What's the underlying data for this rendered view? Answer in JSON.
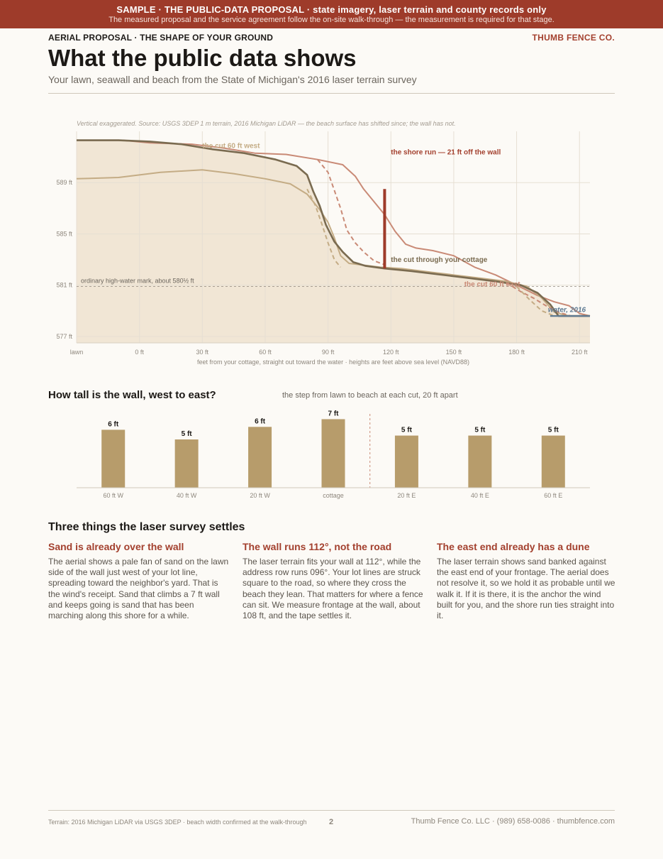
{
  "banner": {
    "line1": "SAMPLE  ·  THE PUBLIC-DATA PROPOSAL  ·  state imagery, laser terrain and county records only",
    "line2": "The measured proposal and the service agreement follow the on-site walk-through — the measurement is required for that stage."
  },
  "header": {
    "kicker": "AERIAL PROPOSAL · THE SHAPE OF YOUR GROUND",
    "brand": "THUMB FENCE CO.",
    "title": "What the public data shows",
    "subtitle": "Your lawn, seawall and beach from the State of Michigan's 2016 laser terrain survey"
  },
  "colors": {
    "accent": "#a3402e",
    "banner": "#9e3b2a",
    "tan": "#b79c6b",
    "olive": "#7a6b50",
    "terrain_fill": "#f1e6d5",
    "water": "#5f7b93"
  },
  "chart_data": [
    {
      "type": "line",
      "title": "",
      "caption": "Vertical exaggerated. Source: USGS 3DEP 1 m terrain, 2016 Michigan LiDAR — the beach surface has shifted since; the wall has not.",
      "xlabel": "feet from your cottage, straight out toward the water  ·  heights are feet above sea level (NAVD88)",
      "x_ticks": [
        "lawn",
        "0 ft",
        "30 ft",
        "60 ft",
        "90 ft",
        "120 ft",
        "150 ft",
        "180 ft",
        "210 ft"
      ],
      "y_ticks": [
        "589 ft",
        "585 ft",
        "581 ft",
        "577 ft"
      ],
      "xlim": [
        -30,
        215
      ],
      "ylim": [
        576.5,
        593
      ],
      "grid": true,
      "reference_line": {
        "y": 580.9,
        "label": "ordinary high-water mark, about 580½ ft"
      },
      "wall": {
        "x": 117,
        "y_bottom": 582.3,
        "y_top": 588.5
      },
      "series": [
        {
          "name": "the cut 60 ft east",
          "style": "solid",
          "color": "#c98a76",
          "points": [
            [
              -30,
              592.3
            ],
            [
              -8,
              592.3
            ],
            [
              5,
              592.1
            ],
            [
              25,
              592.0
            ],
            [
              40,
              591.7
            ],
            [
              55,
              591.3
            ],
            [
              70,
              591.2
            ],
            [
              85,
              590.8
            ],
            [
              97,
              590.4
            ],
            [
              103,
              589.5
            ],
            [
              107,
              588.5
            ],
            [
              112,
              587.5
            ],
            [
              117,
              586.5
            ],
            [
              122,
              585.2
            ],
            [
              127,
              584.2
            ],
            [
              132,
              583.9
            ],
            [
              140,
              583.7
            ],
            [
              150,
              583.3
            ],
            [
              160,
              582.4
            ],
            [
              170,
              581.8
            ],
            [
              180,
              581.0
            ],
            [
              190,
              580.2
            ],
            [
              198,
              579.7
            ],
            [
              205,
              579.4
            ],
            [
              210,
              578.8
            ],
            [
              215,
              578.6
            ]
          ]
        },
        {
          "name": "the cut 60 ft west",
          "style": "solid",
          "color": "#c4ac85",
          "points": [
            [
              -30,
              589.3
            ],
            [
              -10,
              589.4
            ],
            [
              10,
              589.8
            ],
            [
              30,
              590.0
            ],
            [
              45,
              589.7
            ],
            [
              60,
              589.3
            ],
            [
              72,
              588.9
            ],
            [
              80,
              588.1
            ],
            [
              86,
              586.9
            ],
            [
              90,
              585.9
            ],
            [
              93,
              584.7
            ],
            [
              96,
              583.3
            ],
            [
              100,
              582.7
            ],
            [
              105,
              582.6
            ],
            [
              115,
              582.4
            ],
            [
              125,
              582.3
            ],
            [
              140,
              582.0
            ],
            [
              160,
              581.6
            ],
            [
              175,
              581.3
            ],
            [
              185,
              580.9
            ],
            [
              192,
              580.0
            ],
            [
              198,
              578.9
            ],
            [
              205,
              578.6
            ],
            [
              215,
              578.6
            ]
          ]
        },
        {
          "name": "the cut through your cottage",
          "style": "solid",
          "color": "#7a6b50",
          "points": [
            [
              -30,
              592.3
            ],
            [
              -10,
              592.3
            ],
            [
              5,
              592.2
            ],
            [
              20,
              592.0
            ],
            [
              35,
              591.6
            ],
            [
              50,
              591.3
            ],
            [
              65,
              590.8
            ],
            [
              75,
              590.3
            ],
            [
              80,
              589.6
            ],
            [
              83,
              588.3
            ],
            [
              86,
              587.2
            ],
            [
              89,
              585.7
            ],
            [
              93,
              584.4
            ],
            [
              97,
              583.6
            ],
            [
              102,
              582.8
            ],
            [
              108,
              582.5
            ],
            [
              117,
              582.3
            ],
            [
              130,
              582.1
            ],
            [
              150,
              581.7
            ],
            [
              170,
              581.3
            ],
            [
              182,
              581.0
            ],
            [
              190,
              580.4
            ],
            [
              196,
              579.5
            ],
            [
              200,
              578.6
            ],
            [
              215,
              578.6
            ]
          ]
        },
        {
          "name": "",
          "style": "dashed",
          "color": "#c98a76",
          "points": [
            [
              85,
              590.8
            ],
            [
              90,
              589.8
            ],
            [
              93,
              588.4
            ],
            [
              96,
              587.0
            ],
            [
              99,
              585.3
            ],
            [
              103,
              584.3
            ],
            [
              107,
              583.6
            ],
            [
              112,
              582.9
            ],
            [
              117,
              582.6
            ]
          ]
        },
        {
          "name": "",
          "style": "dashed",
          "color": "#c4ac85",
          "points": [
            [
              80,
              588.5
            ],
            [
              84,
              587.2
            ],
            [
              87,
              585.8
            ],
            [
              90,
              584.3
            ],
            [
              93,
              583.0
            ],
            [
              96,
              582.4
            ]
          ]
        },
        {
          "name": "",
          "style": "dashed",
          "color": "#c98a76",
          "points": [
            [
              175,
              581.2
            ],
            [
              182,
              580.5
            ],
            [
              188,
              580.0
            ],
            [
              194,
              579.4
            ],
            [
              200,
              578.9
            ],
            [
              206,
              578.6
            ]
          ]
        },
        {
          "name": "",
          "style": "dashed",
          "color": "#c4ac85",
          "points": [
            [
              180,
              580.9
            ],
            [
              186,
              579.9
            ],
            [
              192,
              579.0
            ],
            [
              198,
              578.6
            ]
          ]
        },
        {
          "name": "water, 2016",
          "style": "solid",
          "color": "#5f7b93",
          "points": [
            [
              196,
              578.6
            ],
            [
              215,
              578.6
            ]
          ]
        }
      ],
      "annotations": [
        {
          "text": "the shore run — 21 ft off the wall",
          "x": 120,
          "y": 591.2,
          "color": "#a3402e",
          "weight": "bold"
        },
        {
          "text": "the cut 60 ft west",
          "x": 30,
          "y": 591.7,
          "color": "#c4ac85",
          "weight": "bold"
        },
        {
          "text": "the cut through your cottage",
          "x": 120,
          "y": 582.8,
          "color": "#7a6b50",
          "weight": "bold"
        },
        {
          "text": "the cut 60 ft east",
          "x": 155,
          "y": 580.9,
          "color": "#c98a76",
          "weight": "bold"
        },
        {
          "text": "water, 2016",
          "x": 213,
          "y": 578.9,
          "color": "#5f7b93",
          "weight": "bold"
        }
      ]
    },
    {
      "type": "bar",
      "title": "How tall is the wall, west to east?",
      "subtitle": "the step from lawn to beach at each cut, 20 ft apart",
      "categories": [
        "60 ft W",
        "40 ft W",
        "20 ft W",
        "cottage",
        "20 ft E",
        "40 ft E",
        "60 ft E"
      ],
      "values": [
        6,
        5,
        6,
        7,
        5,
        5,
        5
      ],
      "value_labels": [
        "6 ft",
        "5 ft",
        "6 ft",
        "7 ft",
        "5 ft",
        "5 ft",
        "5 ft"
      ],
      "value_heights": [
        6.0,
        5.0,
        6.3,
        7.1,
        5.4,
        5.4,
        5.4
      ],
      "ylim": [
        0,
        7.5
      ],
      "divider_after": "cottage",
      "color": "#b79c6b"
    }
  ],
  "findings": {
    "heading": "Three things the laser survey settles",
    "items": [
      {
        "title": "Sand is already over the wall",
        "body": "The aerial shows a pale fan of sand on the lawn side of the wall just west of your lot line, spreading toward the neighbor's yard. That is the wind's receipt. Sand that climbs a 7 ft wall and keeps going is sand that has been marching along this shore for a while."
      },
      {
        "title": "The wall runs 112°, not the road",
        "body": "The laser terrain fits your wall at 112°, while the address row runs 096°. Your lot lines are struck square to the road, so where they cross the beach they lean. That matters for where a fence can sit. We measure frontage at the wall, about 108 ft, and the tape settles it."
      },
      {
        "title": "The east end already has a dune",
        "body": "The laser terrain shows sand banked against the east end of your frontage. The aerial does not resolve it, so we hold it as probable until we walk it. If it is there, it is the anchor the wind built for you, and the shore run ties straight into it."
      }
    ]
  },
  "footer": {
    "source": "Terrain: 2016 Michigan LiDAR via USGS 3DEP · beach width confirmed at the walk-through",
    "page": "2",
    "contact": "Thumb Fence Co. LLC  ·  (989) 658-0086  ·  thumbfence.com"
  }
}
